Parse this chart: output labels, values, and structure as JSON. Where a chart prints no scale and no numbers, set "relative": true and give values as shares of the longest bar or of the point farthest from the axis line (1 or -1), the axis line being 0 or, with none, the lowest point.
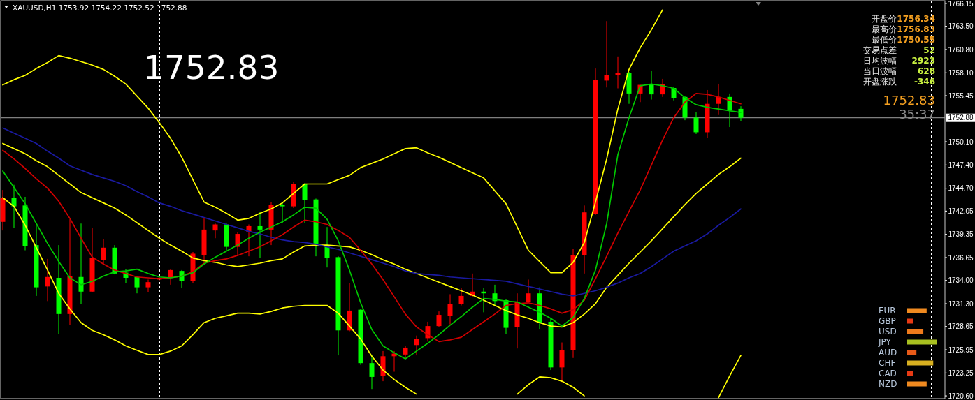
{
  "chart_data": [
    {
      "type": "candlestick",
      "title": "XAUUSD,H1  1753.92 1754.22 1752.52 1752.88",
      "categories": [
        null,
        null,
        null,
        null,
        null,
        null,
        null,
        null,
        null,
        null,
        null,
        null,
        null,
        null,
        null,
        null,
        null,
        null,
        null,
        null,
        null,
        null,
        null,
        null,
        null,
        null,
        null,
        null,
        null,
        null,
        null,
        null,
        null,
        null,
        null,
        null,
        null,
        null,
        null,
        null,
        null,
        null,
        null,
        null,
        null,
        null,
        null,
        null,
        null,
        null,
        null,
        null,
        null,
        null,
        null,
        null,
        null,
        null,
        null,
        null,
        null,
        null,
        null,
        null,
        null,
        null,
        null
      ],
      "ohlc": [
        [
          1740.8,
          1744.5,
          1739.8,
          1743.6
        ],
        [
          1743.6,
          1745.1,
          1740.1,
          1742.6
        ],
        [
          1742.7,
          1743.7,
          1737.5,
          1738.0
        ],
        [
          1738.1,
          1740.4,
          1732.2,
          1733.2
        ],
        [
          1733.3,
          1736.5,
          1731.6,
          1734.4
        ],
        [
          1734.3,
          1738.1,
          1727.8,
          1730.1
        ],
        [
          1730.1,
          1741.1,
          1728.8,
          1734.5
        ],
        [
          1734.4,
          1740.6,
          1731.3,
          1732.7
        ],
        [
          1732.7,
          1740.1,
          1732.6,
          1736.6
        ],
        [
          1736.4,
          1738.8,
          1735.8,
          1737.8
        ],
        [
          1737.8,
          1738.1,
          1734.7,
          1734.8
        ],
        [
          1734.9,
          1735.3,
          1733.7,
          1734.3
        ],
        [
          1734.4,
          1734.5,
          1732.5,
          1733.2
        ],
        [
          1733.2,
          1734.1,
          1732.6,
          1733.8
        ],
        [
          1734.1,
          1734.5,
          1734.0,
          1734.3
        ],
        [
          1734.3,
          1735.3,
          1733.5,
          1735.2
        ],
        [
          1735.1,
          1735.2,
          1733.1,
          1733.9
        ],
        [
          1733.9,
          1737.3,
          1733.7,
          1737.1
        ],
        [
          1736.9,
          1741.3,
          1736.2,
          1739.9
        ],
        [
          1739.8,
          1740.6,
          1738.9,
          1740.5
        ],
        [
          1740.5,
          1740.6,
          1737.5,
          1737.9
        ],
        [
          1737.9,
          1739.6,
          1736.9,
          1739.4
        ],
        [
          1739.6,
          1740.5,
          1736.8,
          1740.3
        ],
        [
          1740.3,
          1742.0,
          1736.6,
          1739.9
        ],
        [
          1739.9,
          1743.1,
          1738.1,
          1742.8
        ],
        [
          1742.8,
          1743.0,
          1740.7,
          1742.6
        ],
        [
          1742.6,
          1745.4,
          1742.4,
          1745.2
        ],
        [
          1745.2,
          1745.3,
          1740.7,
          1743.3
        ],
        [
          1743.4,
          1743.5,
          1736.8,
          1738.2
        ],
        [
          1738.1,
          1740.2,
          1735.5,
          1736.6
        ],
        [
          1736.7,
          1736.8,
          1725.3,
          1728.2
        ],
        [
          1728.2,
          1733.7,
          1728.1,
          1730.5
        ],
        [
          1730.6,
          1730.7,
          1724.2,
          1724.4
        ],
        [
          1724.4,
          1725.3,
          1721.4,
          1722.8
        ],
        [
          1722.9,
          1725.8,
          1722.3,
          1725.2
        ],
        [
          1725.2,
          1725.8,
          1723.4,
          1725.5
        ],
        [
          1725.4,
          1726.4,
          1724.9,
          1726.2
        ],
        [
          1726.5,
          1727.6,
          1725.3,
          1727.2
        ],
        [
          1727.3,
          1729.2,
          1726.9,
          1728.7
        ],
        [
          1728.7,
          1730.4,
          1728.6,
          1730.0
        ],
        [
          1729.9,
          1732.4,
          1728.9,
          1731.3
        ],
        [
          1731.3,
          1733.1,
          1731.1,
          1732.2
        ],
        [
          1732.2,
          1734.8,
          1732.1,
          1732.7
        ],
        [
          1732.7,
          1733.1,
          1730.3,
          1732.5
        ],
        [
          1732.5,
          1733.5,
          1731.0,
          1731.6
        ],
        [
          1731.7,
          1731.8,
          1727.8,
          1728.5
        ],
        [
          1728.6,
          1732.5,
          1726.1,
          1731.5
        ],
        [
          1731.5,
          1734.1,
          1731.4,
          1732.5
        ],
        [
          1732.5,
          1733.2,
          1728.3,
          1729.1
        ],
        [
          1729.2,
          1729.6,
          1723.6,
          1723.9
        ],
        [
          1723.9,
          1726.8,
          1722.2,
          1725.9
        ],
        [
          1725.9,
          1737.7,
          1725.0,
          1736.9
        ],
        [
          1736.9,
          1742.7,
          1734.8,
          1741.9
        ],
        [
          1741.7,
          1758.6,
          1741.6,
          1757.3
        ],
        [
          1757.2,
          1764.1,
          1756.4,
          1757.8
        ],
        [
          1757.8,
          1760.0,
          1756.3,
          1758.1
        ],
        [
          1758.1,
          1758.2,
          1754.5,
          1755.7
        ],
        [
          1755.7,
          1756.7,
          1754.7,
          1756.7
        ],
        [
          1756.8,
          1758.3,
          1755.0,
          1755.6
        ],
        [
          1755.6,
          1757.4,
          1755.3,
          1756.8
        ],
        [
          1756.34,
          1756.5,
          1754.9,
          1755.2
        ],
        [
          1755.3,
          1755.4,
          1752.6,
          1752.9
        ],
        [
          1752.9,
          1753.5,
          1751.0,
          1751.2
        ],
        [
          1751.2,
          1756.1,
          1750.55,
          1754.5
        ],
        [
          1754.5,
          1756.83,
          1753.2,
          1755.3
        ],
        [
          1755.3,
          1755.7,
          1751.8,
          1753.8
        ],
        [
          1753.92,
          1754.22,
          1752.52,
          1752.88
        ]
      ],
      "colors": [
        "#ff0000",
        "#00ff00",
        "#00ff00",
        "#00ff00",
        "#ff0000",
        "#00ff00",
        "#ff0000",
        "#00ff00",
        "#ff0000",
        "#ff0000",
        "#00ff00",
        "#00ff00",
        "#00ff00",
        "#ff0000",
        "#ff0000",
        "#ff0000",
        "#00ff00",
        "#ff0000",
        "#ff0000",
        "#ff0000",
        "#00ff00",
        "#ff0000",
        "#ff0000",
        "#00ff00",
        "#ff0000",
        "#00ff00",
        "#ff0000",
        "#00ff00",
        "#00ff00",
        "#00ff00",
        "#00ff00",
        "#ff0000",
        "#00ff00",
        "#00ff00",
        "#ff0000",
        "#ff0000",
        "#ff0000",
        "#ff0000",
        "#ff0000",
        "#ff0000",
        "#ff0000",
        "#ff0000",
        "#ff0000",
        "#00ff00",
        "#00ff00",
        "#00ff00",
        "#ff0000",
        "#ff0000",
        "#00ff00",
        "#00ff00",
        "#ff0000",
        "#ff0000",
        "#ff0000",
        "#ff0000",
        "#ff0000",
        "#ff0000",
        "#00ff00",
        "#ff0000",
        "#00ff00",
        "#ff0000",
        "#00ff00",
        "#00ff00",
        "#00ff00",
        "#ff0000",
        "#ff0000",
        "#00ff00",
        "#00ff00"
      ],
      "series": [
        {
          "type": "line",
          "color": "#ffff00",
          "values": [
            1756.7,
            1757.3,
            1757.8,
            1758.6,
            1759.3,
            1760.1,
            1759.8,
            1759.4,
            1759.0,
            1758.5,
            1757.7,
            1756.8,
            1755.4,
            1754.0,
            1752.3,
            1750.5,
            1748.3,
            1745.7,
            1743.1,
            1742.5,
            1741.8,
            1741.0,
            1741.2,
            1741.8,
            1742.3,
            1743.0,
            1744.1,
            1745.2,
            1745.2,
            1745.2,
            1745.7,
            1746.2,
            1747.1,
            1747.6,
            1748.1,
            1748.7,
            1749.3,
            1749.4,
            1748.8,
            1748.3,
            1747.7,
            1747.1,
            1746.5,
            1745.9,
            1744.4,
            1742.9,
            1740.2,
            1737.5,
            1736.2,
            1734.9,
            1734.9,
            1736.1,
            1738.4,
            1743.1,
            1748.1,
            1753.9,
            1758.5,
            1761.0,
            1763.1,
            1765.4,
            null,
            null,
            null,
            null,
            null,
            null,
            null
          ]
        },
        {
          "type": "line",
          "color": "#ffff00",
          "values": [
            1749.9,
            1749.3,
            1748.7,
            1747.9,
            1747.2,
            1746.2,
            1745.2,
            1744.2,
            1743.6,
            1743.0,
            1742.4,
            1741.6,
            1740.7,
            1739.8,
            1738.9,
            1738.1,
            1737.4,
            1736.6,
            1736.3,
            1736.1,
            1735.8,
            1735.6,
            1735.8,
            1736.0,
            1736.3,
            1736.5,
            1737.3,
            1738.0,
            1738.1,
            1738.1,
            1738.0,
            1737.9,
            1737.5,
            1737.0,
            1736.4,
            1735.9,
            1735.3,
            1734.8,
            1734.3,
            1733.8,
            1733.3,
            1732.8,
            1732.3,
            1731.7,
            1731.1,
            1730.5,
            1730.0,
            1729.6,
            1729.1,
            1728.7,
            1728.6,
            1729.1,
            1730.1,
            1731.3,
            1733.2,
            1734.6,
            1736.0,
            1737.3,
            1738.6,
            1740.0,
            1741.4,
            1742.8,
            1744.1,
            1745.2,
            1746.3,
            1747.2,
            1748.2
          ]
        },
        {
          "type": "line",
          "color": "#ffff00",
          "values": [
            1743.6,
            1742.6,
            1740.4,
            1737.8,
            1735.2,
            1732.5,
            1730.7,
            1729.1,
            1728.2,
            1727.7,
            1727.1,
            1726.4,
            1725.9,
            1725.4,
            1725.4,
            1725.8,
            1726.4,
            1727.7,
            1729.1,
            1729.6,
            1729.9,
            1730.2,
            1730.2,
            1730.1,
            1730.4,
            1730.8,
            1731.0,
            1731.1,
            1731.1,
            1731.1,
            1730.2,
            1728.7,
            1727.2,
            1725.2,
            1723.6,
            1722.5,
            1721.6,
            1720.8,
            null,
            null,
            null,
            null,
            null,
            null,
            null,
            null,
            1720.8,
            1721.9,
            1722.8,
            1722.7,
            1722.3,
            1721.6,
            1720.6,
            null,
            null,
            null,
            null,
            null,
            null,
            null,
            null,
            null,
            null,
            null,
            1720.4,
            1722.9,
            1725.3
          ]
        },
        {
          "type": "line",
          "color": "#1a1aa0",
          "values": [
            1751.7,
            1751.1,
            1750.5,
            1749.9,
            1749.0,
            1748.2,
            1747.3,
            1746.8,
            1746.3,
            1745.9,
            1745.5,
            1745.0,
            1744.3,
            1743.7,
            1743.0,
            1742.6,
            1742.1,
            1741.7,
            1741.3,
            1740.9,
            1740.5,
            1740.1,
            1739.7,
            1739.4,
            1739.0,
            1738.7,
            1738.5,
            1738.4,
            1738.2,
            1737.9,
            1737.6,
            1737.2,
            1736.8,
            1736.4,
            1736.0,
            1735.6,
            1735.1,
            1734.8,
            1734.7,
            1734.6,
            1734.4,
            1734.3,
            1734.2,
            1734.1,
            1734.0,
            1733.9,
            1733.6,
            1733.3,
            1733.0,
            1732.7,
            1732.4,
            1732.2,
            1732.5,
            1732.8,
            1733.2,
            1733.7,
            1734.3,
            1734.8,
            1735.6,
            1736.5,
            1737.4,
            1738.0,
            1738.6,
            1739.4,
            1740.4,
            1741.3,
            1742.3
          ]
        },
        {
          "type": "line",
          "color": "#d00000",
          "values": [
            1749.1,
            1748.1,
            1747.0,
            1745.8,
            1744.7,
            1743.2,
            1741.2,
            1738.9,
            1736.7,
            1735.9,
            1735.2,
            1734.8,
            1734.4,
            1734.3,
            1734.2,
            1734.3,
            1734.5,
            1735.0,
            1736.0,
            1736.3,
            1736.5,
            1736.9,
            1737.4,
            1737.9,
            1738.6,
            1739.3,
            1740.2,
            1741.0,
            1740.8,
            1740.5,
            1739.8,
            1739.0,
            1737.5,
            1735.9,
            1734.1,
            1732.1,
            1730.1,
            1728.6,
            1727.7,
            1726.9,
            1727.1,
            1727.4,
            1728.3,
            1729.2,
            1730.1,
            1731.1,
            1731.3,
            1731.4,
            1731.1,
            1730.7,
            1730.2,
            1730.6,
            1731.7,
            1734.2,
            1736.8,
            1739.5,
            1742.0,
            1744.5,
            1747.4,
            1750.3,
            1752.9,
            1754.7,
            1755.7,
            1755.6,
            1755.3,
            1754.9,
            1754.5
          ]
        },
        {
          "type": "line",
          "color": "#00c800",
          "values": [
            1746.7,
            1744.8,
            1742.9,
            1740.6,
            1738.3,
            1736.2,
            1734.3,
            1733.5,
            1733.9,
            1734.5,
            1735.0,
            1735.1,
            1735.3,
            1734.8,
            1734.4,
            1734.3,
            1734.5,
            1734.9,
            1735.9,
            1736.7,
            1737.4,
            1738.1,
            1738.9,
            1739.6,
            1740.2,
            1740.8,
            1741.6,
            1742.5,
            1742.4,
            1741.1,
            1738.6,
            1735.2,
            1731.4,
            1728.3,
            1726.4,
            1725.6,
            1724.9,
            1725.8,
            1726.7,
            1727.7,
            1728.8,
            1729.8,
            1730.9,
            1731.9,
            1731.8,
            1731.6,
            1731.5,
            1730.9,
            1730.3,
            1729.6,
            1728.7,
            1729.7,
            1731.9,
            1735.2,
            1740.6,
            1748.6,
            1752.9,
            1756.6,
            1756.8,
            1756.6,
            1756.3,
            1755.2,
            1754.4,
            1754.1,
            1753.9,
            1753.7,
            1753.5
          ]
        }
      ],
      "ylim": [
        1720.12,
        1766.55
      ],
      "yticks": [
        {
          "value": 1766.15,
          "label": "1766.15"
        },
        {
          "value": 1763.5,
          "label": "1763.50"
        },
        {
          "value": 1760.8,
          "label": "1760.80"
        },
        {
          "value": 1758.1,
          "label": "1758.10"
        },
        {
          "value": 1755.45,
          "label": "1755.45"
        },
        {
          "value": 1750.1,
          "label": "1750.10"
        },
        {
          "value": 1747.4,
          "label": "1747.40"
        },
        {
          "value": 1744.7,
          "label": "1744.70"
        },
        {
          "value": 1742.05,
          "label": "1742.05"
        },
        {
          "value": 1739.35,
          "label": "1739.35"
        },
        {
          "value": 1736.65,
          "label": "1736.65"
        },
        {
          "value": 1734.0,
          "label": "1734.00"
        },
        {
          "value": 1731.3,
          "label": "1731.30"
        },
        {
          "value": 1728.65,
          "label": "1728.65"
        },
        {
          "value": 1725.95,
          "label": "1725.95"
        },
        {
          "value": 1723.25,
          "label": "1723.25"
        },
        {
          "value": 1720.6,
          "label": "1720.60"
        }
      ],
      "tick_labels": "y",
      "grid": "x",
      "ref_lines": [
        {
          "axis": "y",
          "value": 1752.88,
          "label": "1752.88",
          "color": "#a0a0a0",
          "line_style": "solid"
        }
      ],
      "annotations": [
        "1752.83",
        "1752.83",
        "35:37"
      ]
    },
    {
      "type": "other",
      "annotations": [
        "开盘价",
        "1756.34",
        "最高价",
        "1756.83",
        "最低价",
        "1750.55",
        "交易点差",
        "52",
        "日均波幅",
        "2923",
        "当日波幅",
        "628",
        "开盘涨跌",
        "-346"
      ]
    },
    {
      "type": "bar",
      "orientation": "horizontal",
      "relative": true,
      "categories": [
        "EUR",
        "GBP",
        "USD",
        "JPY",
        "AUD",
        "CHF",
        "CAD",
        "NZD"
      ],
      "values": [
        0.67,
        0.22,
        0.56,
        1,
        0.33,
        0.89,
        0.22,
        0.67
      ],
      "colors": [
        "#f08a20",
        "#e83a14",
        "#ee7a1c",
        "#a8c020",
        "#e85a18",
        "#d8b020",
        "#e83a14",
        "#f08a20"
      ]
    }
  ]
}
